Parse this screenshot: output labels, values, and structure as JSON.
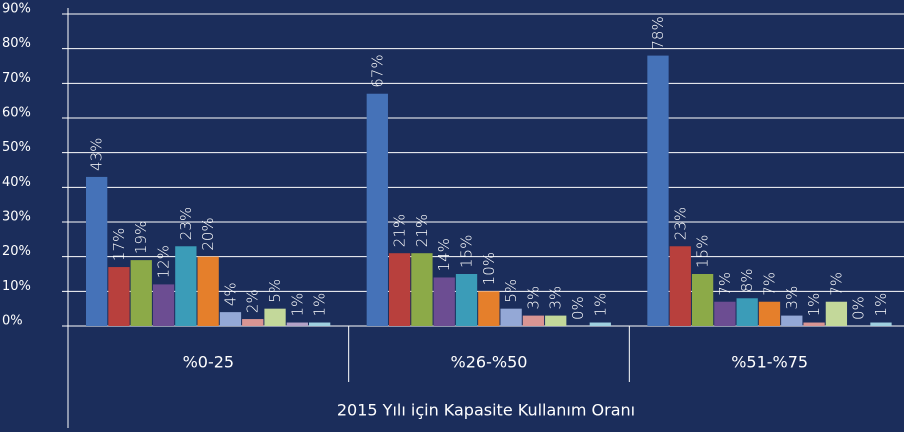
{
  "chart_data": {
    "type": "bar",
    "x_label": "2015 Yılı için Kapasite Kullanım Oranı",
    "categories": [
      "%0-25",
      "%26-%50",
      "%51-%75"
    ],
    "ylim": [
      0,
      90
    ],
    "yticks": [
      {
        "value": 0,
        "label": "0%"
      },
      {
        "value": 10,
        "label": "10%"
      },
      {
        "value": 20,
        "label": "20%"
      },
      {
        "value": 30,
        "label": "30%"
      },
      {
        "value": 40,
        "label": "40%"
      },
      {
        "value": 50,
        "label": "50%"
      },
      {
        "value": 60,
        "label": "60%"
      },
      {
        "value": 70,
        "label": "70%"
      },
      {
        "value": 80,
        "label": "80%"
      },
      {
        "value": 90,
        "label": "90%"
      }
    ],
    "grid": true,
    "series": [
      {
        "color": "#4572b8",
        "values": [
          43,
          67,
          78
        ],
        "value_labels": [
          "43%",
          "67%",
          "78%"
        ]
      },
      {
        "color": "#b8403d",
        "values": [
          17,
          21,
          23
        ],
        "value_labels": [
          "17%",
          "21%",
          "23%"
        ]
      },
      {
        "color": "#8caa48",
        "values": [
          19,
          21,
          15
        ],
        "value_labels": [
          "19%",
          "21%",
          "15%"
        ]
      },
      {
        "color": "#6c4d92",
        "values": [
          12,
          14,
          7
        ],
        "value_labels": [
          "12%",
          "14%",
          "7%"
        ]
      },
      {
        "color": "#3b9cb8",
        "values": [
          23,
          15,
          8
        ],
        "value_labels": [
          "23%",
          "15%",
          "8%"
        ]
      },
      {
        "color": "#e57f2b",
        "values": [
          20,
          10,
          7
        ],
        "value_labels": [
          "20%",
          "10%",
          "7%"
        ]
      },
      {
        "color": "#94a8d6",
        "values": [
          4,
          5,
          3
        ],
        "value_labels": [
          "4%",
          "5%",
          "3%"
        ]
      },
      {
        "color": "#d99593",
        "values": [
          2,
          3,
          1
        ],
        "value_labels": [
          "2%",
          "3%",
          "1%"
        ]
      },
      {
        "color": "#c3d89a",
        "values": [
          5,
          3,
          7
        ],
        "value_labels": [
          "5%",
          "3%",
          "7%"
        ]
      },
      {
        "color": "#b3a2c7",
        "values": [
          1,
          0,
          0
        ],
        "value_labels": [
          "1%",
          "0%",
          "0%"
        ]
      },
      {
        "color": "#9fd0e0",
        "values": [
          1,
          1,
          1
        ],
        "value_labels": [
          "1%",
          "1%",
          "1%"
        ]
      }
    ]
  }
}
